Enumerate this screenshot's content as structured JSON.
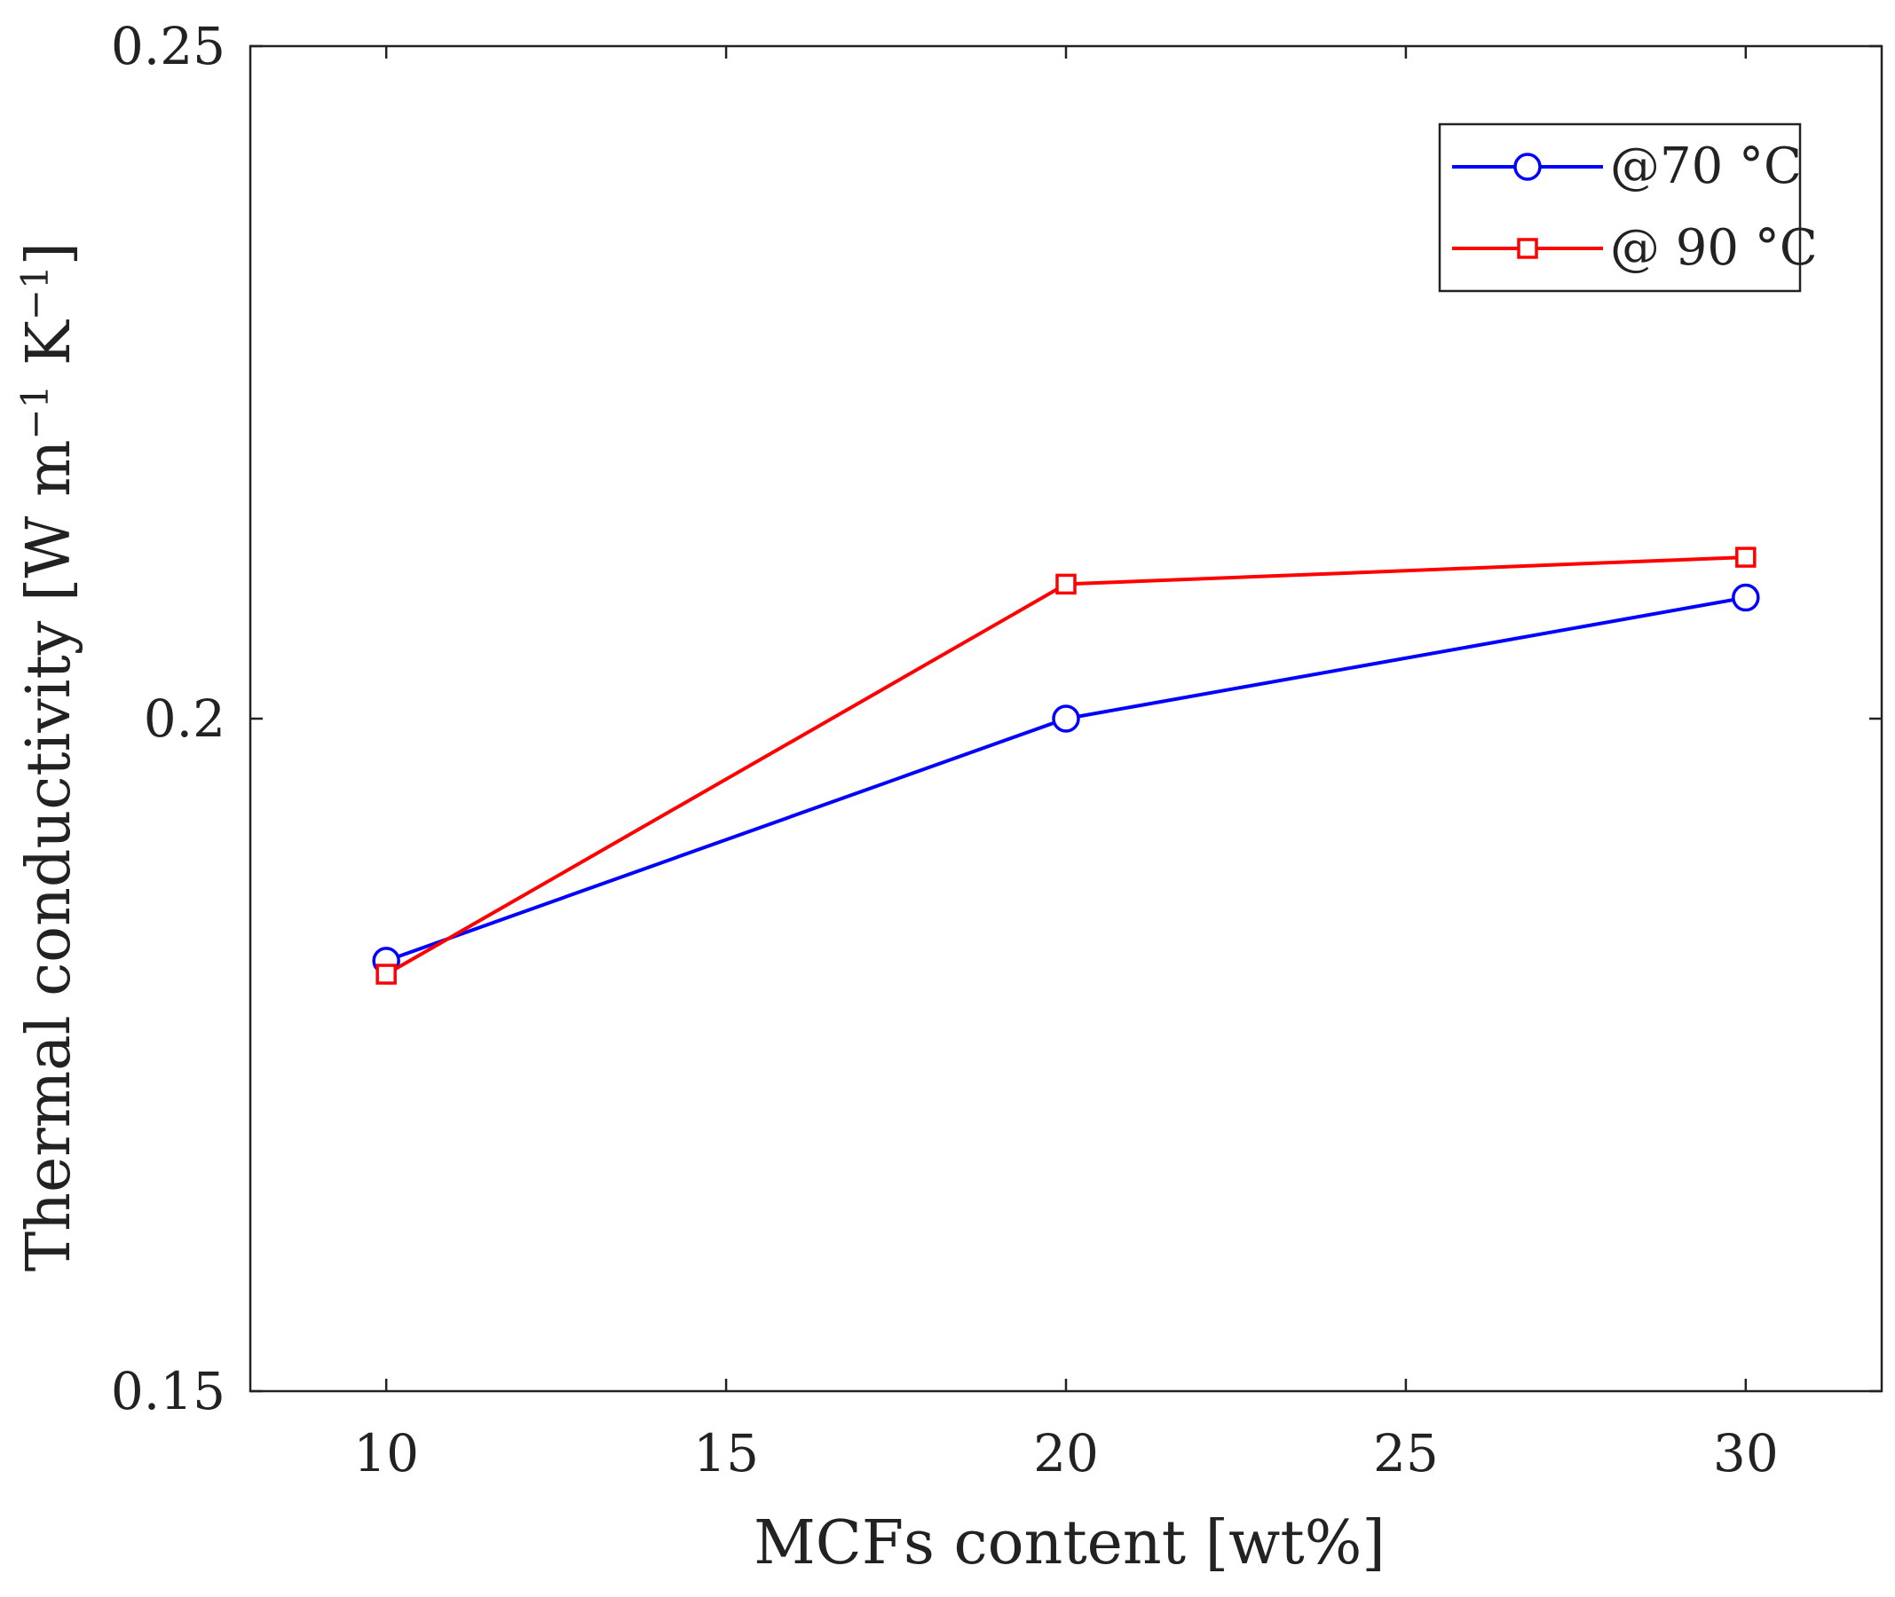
{
  "chart_data": {
    "type": "line",
    "title": "",
    "xlabel": "MCFs content [wt%]",
    "ylabel": "Thermal conductivity [W m⁻¹ K⁻¹]",
    "ylabel_parts": {
      "main": "Thermal conductivity [W m",
      "exp1": "−1",
      "mid": " K",
      "exp2": "−1",
      "end": "]"
    },
    "xlim": [
      8,
      32
    ],
    "ylim": [
      0.15,
      0.25
    ],
    "xticks": [
      10,
      15,
      20,
      25,
      30
    ],
    "xtick_labels": [
      "10",
      "15",
      "20",
      "25",
      "30"
    ],
    "yticks": [
      0.15,
      0.2,
      0.25
    ],
    "ytick_labels": [
      "0.15",
      "0.2",
      "0.25"
    ],
    "grid": false,
    "legend_position": "top-right",
    "series": [
      {
        "name": "@70 °C",
        "color": "#0000ff",
        "marker": "circle",
        "x": [
          10,
          20,
          30
        ],
        "y": [
          0.182,
          0.2,
          0.209
        ]
      },
      {
        "name": "@ 90 °C",
        "color": "#ff0000",
        "marker": "square",
        "x": [
          10,
          20,
          30
        ],
        "y": [
          0.181,
          0.21,
          0.212
        ]
      }
    ]
  }
}
